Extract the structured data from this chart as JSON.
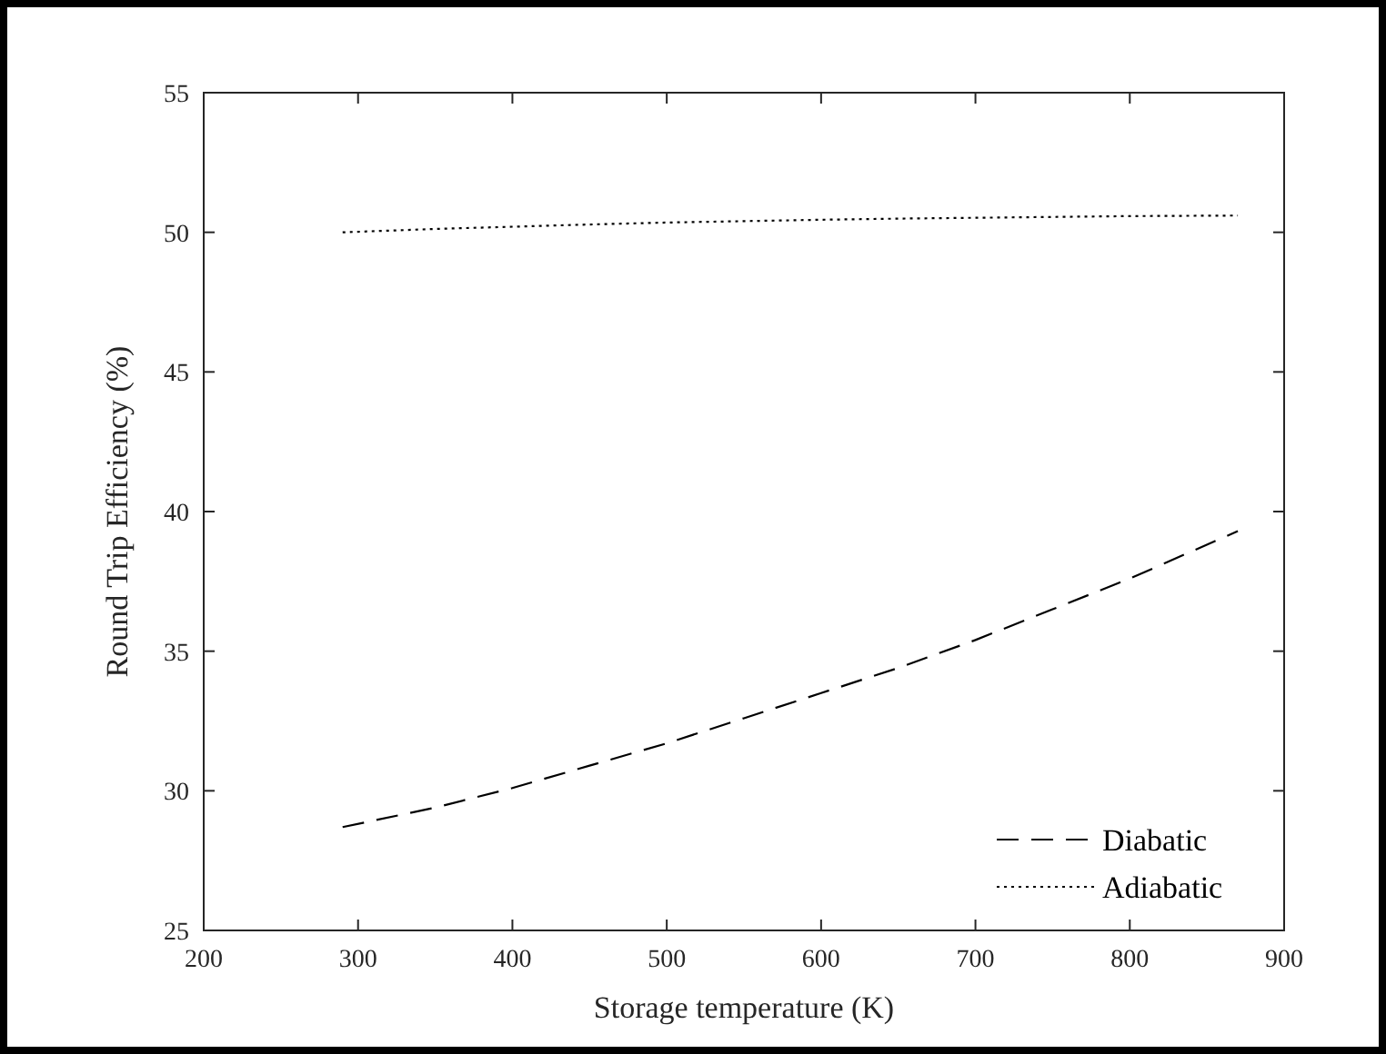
{
  "chart_data": {
    "type": "line",
    "xlabel": "Storage temperature (K)",
    "ylabel": "Round Trip Efficiency (%)",
    "x": [
      290,
      350,
      400,
      450,
      500,
      550,
      600,
      650,
      700,
      750,
      800,
      870
    ],
    "series": [
      {
        "name": "Diabatic",
        "color": "#000000",
        "line_style": "dashed",
        "values": [
          28.7,
          29.4,
          30.1,
          30.9,
          31.7,
          32.6,
          33.5,
          34.4,
          35.4,
          36.5,
          37.6,
          39.3
        ]
      },
      {
        "name": "Adiabatic",
        "color": "#000000",
        "line_style": "dotted",
        "values": [
          50.0,
          50.12,
          50.2,
          50.28,
          50.35,
          50.4,
          50.45,
          50.49,
          50.52,
          50.55,
          50.58,
          50.6
        ]
      }
    ],
    "xlim": [
      200,
      900
    ],
    "xticks": [
      200,
      300,
      400,
      500,
      600,
      700,
      800,
      900
    ],
    "ylim": [
      25,
      55
    ],
    "yticks": [
      25,
      30,
      35,
      40,
      45,
      50,
      55
    ],
    "grid": false,
    "legend": "bottom right",
    "marker": "none"
  }
}
